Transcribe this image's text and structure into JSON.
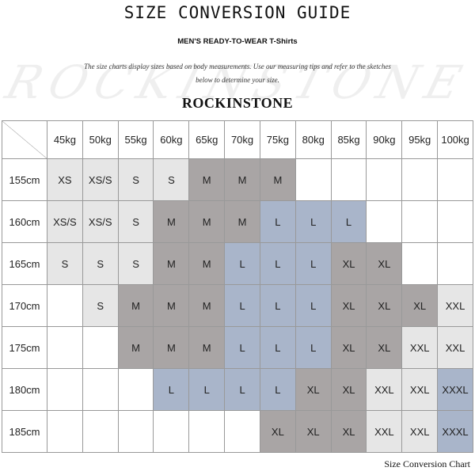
{
  "header": {
    "title": "SIZE CONVERSION GUIDE",
    "subtitle": "MEN'S READY-TO-WEAR T-Shirts",
    "description": [
      "The size charts display sizes based on body measurements.  Use our measuring tips and refer to the sketches",
      "below to determine your size."
    ],
    "brand": "ROCKINSTONE"
  },
  "table": {
    "columns": [
      "45kg",
      "50kg",
      "55kg",
      "60kg",
      "65kg",
      "70kg",
      "75kg",
      "80kg",
      "85kg",
      "90kg",
      "95kg",
      "100kg"
    ],
    "rows": [
      {
        "label": "155cm",
        "cells": [
          {
            "text": "XS",
            "color": "#e6e6e6"
          },
          {
            "text": "XS/S",
            "color": "#e6e6e6"
          },
          {
            "text": "S",
            "color": "#e6e6e6"
          },
          {
            "text": "S",
            "color": "#e6e6e6"
          },
          {
            "text": "M",
            "color": "#a9a5a5"
          },
          {
            "text": "M",
            "color": "#a9a5a5"
          },
          {
            "text": "M",
            "color": "#a9a5a5"
          },
          null,
          null,
          null,
          null,
          null
        ]
      },
      {
        "label": "160cm",
        "cells": [
          {
            "text": "XS/S",
            "color": "#e6e6e6"
          },
          {
            "text": "XS/S",
            "color": "#e6e6e6"
          },
          {
            "text": "S",
            "color": "#e6e6e6"
          },
          {
            "text": "M",
            "color": "#a9a5a5"
          },
          {
            "text": "M",
            "color": "#a9a5a5"
          },
          {
            "text": "M",
            "color": "#a9a5a5"
          },
          {
            "text": "L",
            "color": "#a9b5ca"
          },
          {
            "text": "L",
            "color": "#a9b5ca"
          },
          {
            "text": "L",
            "color": "#a9b5ca"
          },
          null,
          null,
          null
        ]
      },
      {
        "label": "165cm",
        "cells": [
          {
            "text": "S",
            "color": "#e6e6e6"
          },
          {
            "text": "S",
            "color": "#e6e6e6"
          },
          {
            "text": "S",
            "color": "#e6e6e6"
          },
          {
            "text": "M",
            "color": "#a9a5a5"
          },
          {
            "text": "M",
            "color": "#a9a5a5"
          },
          {
            "text": "L",
            "color": "#a9b5ca"
          },
          {
            "text": "L",
            "color": "#a9b5ca"
          },
          {
            "text": "L",
            "color": "#a9b5ca"
          },
          {
            "text": "XL",
            "color": "#a9a5a5"
          },
          {
            "text": "XL",
            "color": "#a9a5a5"
          },
          null,
          null
        ]
      },
      {
        "label": "170cm",
        "cells": [
          null,
          {
            "text": "S",
            "color": "#e6e6e6"
          },
          {
            "text": "M",
            "color": "#a9a5a5"
          },
          {
            "text": "M",
            "color": "#a9a5a5"
          },
          {
            "text": "M",
            "color": "#a9a5a5"
          },
          {
            "text": "L",
            "color": "#a9b5ca"
          },
          {
            "text": "L",
            "color": "#a9b5ca"
          },
          {
            "text": "L",
            "color": "#a9b5ca"
          },
          {
            "text": "XL",
            "color": "#a9a5a5"
          },
          {
            "text": "XL",
            "color": "#a9a5a5"
          },
          {
            "text": "XL",
            "color": "#a9a5a5"
          },
          {
            "text": "XXL",
            "color": "#e6e6e6"
          }
        ]
      },
      {
        "label": "175cm",
        "cells": [
          null,
          null,
          {
            "text": "M",
            "color": "#a9a5a5"
          },
          {
            "text": "M",
            "color": "#a9a5a5"
          },
          {
            "text": "M",
            "color": "#a9a5a5"
          },
          {
            "text": "L",
            "color": "#a9b5ca"
          },
          {
            "text": "L",
            "color": "#a9b5ca"
          },
          {
            "text": "L",
            "color": "#a9b5ca"
          },
          {
            "text": "XL",
            "color": "#a9a5a5"
          },
          {
            "text": "XL",
            "color": "#a9a5a5"
          },
          {
            "text": "XXL",
            "color": "#e6e6e6"
          },
          {
            "text": "XXL",
            "color": "#e6e6e6"
          }
        ]
      },
      {
        "label": "180cm",
        "cells": [
          null,
          null,
          null,
          {
            "text": "L",
            "color": "#a9b5ca"
          },
          {
            "text": "L",
            "color": "#a9b5ca"
          },
          {
            "text": "L",
            "color": "#a9b5ca"
          },
          {
            "text": "L",
            "color": "#a9b5ca"
          },
          {
            "text": "XL",
            "color": "#a9a5a5"
          },
          {
            "text": "XL",
            "color": "#a9a5a5"
          },
          {
            "text": "XXL",
            "color": "#e6e6e6"
          },
          {
            "text": "XXL",
            "color": "#e6e6e6"
          },
          {
            "text": "XXXL",
            "color": "#a9b5ca"
          }
        ]
      },
      {
        "label": "185cm",
        "cells": [
          null,
          null,
          null,
          null,
          null,
          null,
          {
            "text": "XL",
            "color": "#a9a5a5"
          },
          {
            "text": "XL",
            "color": "#a9a5a5"
          },
          {
            "text": "XL",
            "color": "#a9a5a5"
          },
          {
            "text": "XXL",
            "color": "#e6e6e6"
          },
          {
            "text": "XXL",
            "color": "#e6e6e6"
          },
          {
            "text": "XXXL",
            "color": "#a9b5ca"
          }
        ]
      }
    ]
  },
  "footer": "Size Conversion Chart"
}
